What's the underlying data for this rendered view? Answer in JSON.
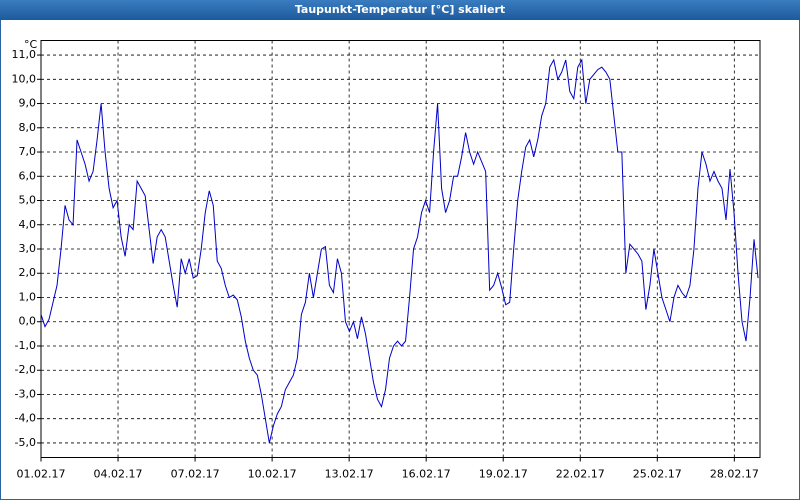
{
  "chart_data": {
    "type": "line",
    "title": "Taupunkt-Temperatur [°C] skaliert",
    "y_unit": "°C",
    "color": "#0000c8",
    "grid": true,
    "xlim": [
      0,
      28
    ],
    "ylim": [
      -5.6,
      11.6
    ],
    "xticks": [
      {
        "value": 0,
        "label": "01.02.17"
      },
      {
        "value": 3,
        "label": "04.02.17"
      },
      {
        "value": 6,
        "label": "07.02.17"
      },
      {
        "value": 9,
        "label": "10.02.17"
      },
      {
        "value": 12,
        "label": "13.02.17"
      },
      {
        "value": 15,
        "label": "16.02.17"
      },
      {
        "value": 18,
        "label": "19.02.17"
      },
      {
        "value": 21,
        "label": "22.02.17"
      },
      {
        "value": 24,
        "label": "25.02.17"
      },
      {
        "value": 27,
        "label": "28.02.17"
      }
    ],
    "yticks": [
      {
        "value": 11,
        "label": "11,0"
      },
      {
        "value": 10,
        "label": "10,0"
      },
      {
        "value": 9,
        "label": "9,0"
      },
      {
        "value": 8,
        "label": "8,0"
      },
      {
        "value": 7,
        "label": "7,0"
      },
      {
        "value": 6,
        "label": "6,0"
      },
      {
        "value": 5,
        "label": "5,0"
      },
      {
        "value": 4,
        "label": "4,0"
      },
      {
        "value": 3,
        "label": "3,0"
      },
      {
        "value": 2,
        "label": "2,0"
      },
      {
        "value": 1,
        "label": "1,0"
      },
      {
        "value": 0,
        "label": "0,0"
      },
      {
        "value": -1,
        "label": "-1,0"
      },
      {
        "value": -2,
        "label": "-2,0"
      },
      {
        "value": -3,
        "label": "-3,0"
      },
      {
        "value": -4,
        "label": "-4,0"
      },
      {
        "value": -5,
        "label": "-5,0"
      }
    ],
    "x": [
      0,
      0.156,
      0.312,
      0.468,
      0.624,
      0.78,
      0.936,
      1.092,
      1.248,
      1.404,
      1.56,
      1.716,
      1.872,
      2.028,
      2.184,
      2.34,
      2.496,
      2.652,
      2.808,
      2.964,
      3.12,
      3.276,
      3.432,
      3.588,
      3.744,
      3.9,
      4.056,
      4.212,
      4.368,
      4.524,
      4.68,
      4.836,
      4.992,
      5.148,
      5.304,
      5.46,
      5.616,
      5.772,
      5.928,
      6.084,
      6.24,
      6.396,
      6.552,
      6.708,
      6.864,
      7.02,
      7.176,
      7.332,
      7.488,
      7.644,
      7.8,
      7.956,
      8.112,
      8.268,
      8.424,
      8.58,
      8.736,
      8.892,
      9.048,
      9.204,
      9.36,
      9.516,
      9.672,
      9.828,
      9.984,
      10.14,
      10.296,
      10.452,
      10.608,
      10.764,
      10.92,
      11.076,
      11.232,
      11.388,
      11.544,
      11.7,
      11.856,
      12.012,
      12.168,
      12.324,
      12.48,
      12.636,
      12.792,
      12.948,
      13.104,
      13.26,
      13.416,
      13.572,
      13.728,
      13.884,
      14.04,
      14.196,
      14.352,
      14.508,
      14.664,
      14.82,
      14.976,
      15.132,
      15.288,
      15.444,
      15.6,
      15.756,
      15.912,
      16.068,
      16.224,
      16.38,
      16.536,
      16.692,
      16.848,
      17.004,
      17.16,
      17.316,
      17.472,
      17.628,
      17.784,
      17.94,
      18.096,
      18.252,
      18.408,
      18.564,
      18.72,
      18.876,
      19.032,
      19.188,
      19.344,
      19.5,
      19.656,
      19.812,
      19.968,
      20.124,
      20.28,
      20.436,
      20.592,
      20.748,
      20.904,
      21.06,
      21.216,
      21.372,
      21.528,
      21.684,
      21.84,
      21.996,
      22.152,
      22.308,
      22.464,
      22.62,
      22.776,
      22.932,
      23.088,
      23.244,
      23.4,
      23.556,
      23.712,
      23.868,
      24.024,
      24.18,
      24.336,
      24.492,
      24.648,
      24.804,
      24.96,
      25.116,
      25.272,
      25.428,
      25.584,
      25.74,
      25.896,
      26.052,
      26.208,
      26.364,
      26.52,
      26.676,
      26.832,
      26.988,
      27.144,
      27.3,
      27.456,
      27.612,
      27.768,
      27.924
    ],
    "values": [
      0.3,
      -0.2,
      0.1,
      0.8,
      1.5,
      3.0,
      4.8,
      4.2,
      4.0,
      7.5,
      7.0,
      6.5,
      5.8,
      6.2,
      7.5,
      9.0,
      7.0,
      5.5,
      4.7,
      5.0,
      3.5,
      2.7,
      4.0,
      3.8,
      5.8,
      5.5,
      5.2,
      3.8,
      2.4,
      3.5,
      3.8,
      3.5,
      2.5,
      1.5,
      0.6,
      2.6,
      2.0,
      2.6,
      1.8,
      1.9,
      3.0,
      4.5,
      5.4,
      4.8,
      2.5,
      2.2,
      1.5,
      1.0,
      1.1,
      0.9,
      0.2,
      -0.8,
      -1.5,
      -2.0,
      -2.2,
      -3.0,
      -4.0,
      -5.0,
      -4.3,
      -3.8,
      -3.5,
      -2.8,
      -2.5,
      -2.2,
      -1.5,
      0.3,
      0.8,
      2.0,
      1.0,
      2.0,
      3.0,
      3.1,
      1.5,
      1.2,
      2.6,
      2.0,
      0.0,
      -0.4,
      0.0,
      -0.7,
      0.2,
      -0.5,
      -1.5,
      -2.5,
      -3.2,
      -3.5,
      -2.8,
      -1.5,
      -1.0,
      -0.8,
      -1.0,
      -0.8,
      1.0,
      3.0,
      3.5,
      4.5,
      5.0,
      4.5,
      7.0,
      9.0,
      5.5,
      4.5,
      5.0,
      6.0,
      6.0,
      6.8,
      7.8,
      7.0,
      6.5,
      7.0,
      6.6,
      6.2,
      1.3,
      1.5,
      2.0,
      1.4,
      0.7,
      0.8,
      3.0,
      5.0,
      6.2,
      7.2,
      7.5,
      6.8,
      7.5,
      8.5,
      9.0,
      10.5,
      10.8,
      10.0,
      10.3,
      10.8,
      9.5,
      9.2,
      10.5,
      10.8,
      9.0,
      10.0,
      10.2,
      10.4,
      10.5,
      10.3,
      10.0,
      8.5,
      7.0,
      7.0,
      2.0,
      3.2,
      3.0,
      2.8,
      2.5,
      0.5,
      1.5,
      3.0,
      2.0,
      1.0,
      0.5,
      0.0,
      1.0,
      1.5,
      1.2,
      1.0,
      1.5,
      3.0,
      5.5,
      7.0,
      6.5,
      5.8,
      6.2,
      5.8,
      5.5,
      4.2,
      6.3,
      4.5,
      2.0,
      0.0,
      -0.8,
      1.0,
      3.4,
      1.8
    ]
  }
}
